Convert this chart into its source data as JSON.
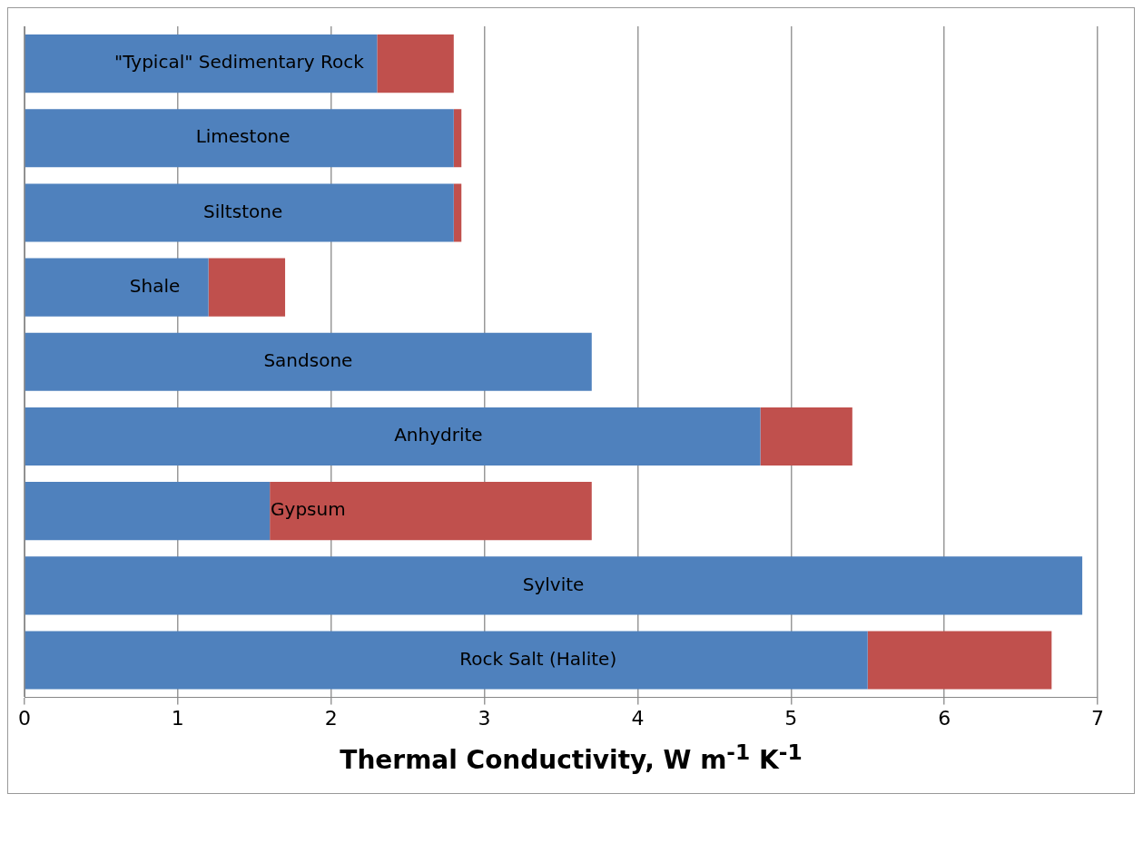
{
  "chart_data": {
    "type": "bar",
    "orientation": "horizontal",
    "stacked": true,
    "categories": [
      "\"Typical\" Sedimentary Rock",
      "Limestone",
      "Siltstone",
      "Shale",
      "Sandsone",
      "Anhydrite",
      "Gypsum",
      "Sylvite",
      "Rock Salt (Halite)"
    ],
    "series": [
      {
        "color": "#4f81bd",
        "values": [
          2.3,
          2.8,
          2.8,
          1.2,
          3.7,
          4.8,
          1.6,
          6.9,
          5.5
        ]
      },
      {
        "color": "#c0504d",
        "values": [
          0.5,
          0.05,
          0.05,
          0.5,
          0,
          0.6,
          2.1,
          0,
          1.2
        ]
      }
    ],
    "xlabel": "Thermal Conductivity, W m$^{-1}$ K$^{-1}$",
    "xlim": [
      0,
      7
    ],
    "xticks": [
      0,
      1,
      2,
      3,
      4,
      5,
      6,
      7
    ],
    "grid": "x",
    "tick_labels": "x",
    "legend": false
  }
}
